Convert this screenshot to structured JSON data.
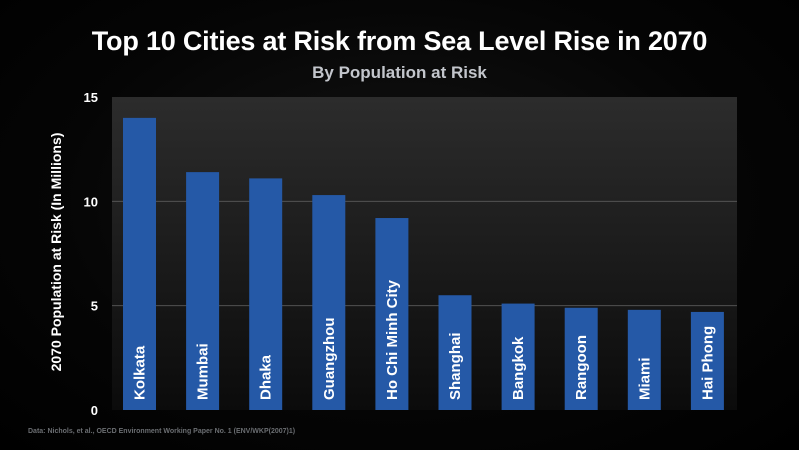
{
  "title": "Top 10 Cities at Risk from Sea Level Rise in 2070",
  "subtitle": "By Population at Risk",
  "source": "Data: Nichols, et al., OECD Environment Working Paper No. 1 (ENV/WKP(2007)1)",
  "colors": {
    "bar": "#2559a7",
    "plot_top": "#2c2c2c",
    "plot_bottom": "#0b0b0b",
    "grid": "#5a5a5a"
  },
  "chart_data": {
    "type": "bar",
    "title": "Top 10 Cities at Risk from Sea Level Rise in 2070",
    "subtitle": "By Population at Risk",
    "xlabel": "",
    "ylabel": "2070 Population at Risk (In Millions)",
    "ylim": [
      0,
      15
    ],
    "yticks": [
      0,
      5,
      10,
      15
    ],
    "grid": true,
    "categories": [
      "Kolkata",
      "Mumbai",
      "Dhaka",
      "Guangzhou",
      "Ho Chi Minh City",
      "Shanghai",
      "Bangkok",
      "Rangoon",
      "Miami",
      "Hai Phong"
    ],
    "values": [
      14.0,
      11.4,
      11.1,
      10.3,
      9.2,
      5.5,
      5.1,
      4.9,
      4.8,
      4.7
    ]
  }
}
